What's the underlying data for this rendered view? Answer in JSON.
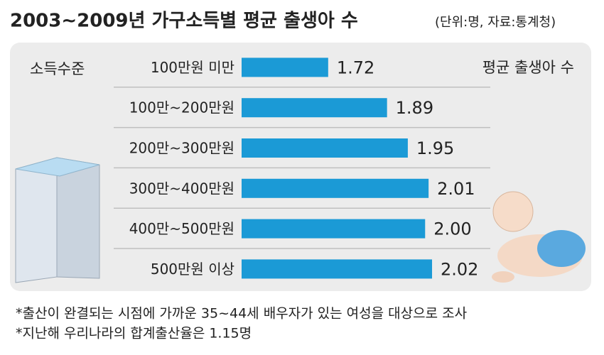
{
  "chart_data": {
    "type": "barh",
    "title": "2003~2009년 가구소득별 평균 출생아 수",
    "subtitle": "(단위:명, 자료:통계청)",
    "category_label": "소득수준",
    "value_label": "평균 출생아 수",
    "categories": [
      "100만원 미만",
      "100만~200만원",
      "200만~300만원",
      "300만~400만원",
      "400만~500만원",
      "500만원 이상"
    ],
    "values": [
      1.72,
      1.89,
      1.95,
      2.01,
      2.0,
      2.02
    ],
    "value_labels": [
      "1.72",
      "1.89",
      "1.95",
      "2.01",
      "2.00",
      "2.02"
    ],
    "color": "#1b9ad6",
    "xlim": [
      1.47,
      2.1
    ],
    "notes": [
      "*출산이 완결되는 시점에 가까운 35~44세 배우자가 있는 여성을 대상으로 조사",
      "*지난해 우리나라의 합계출산율은 1.15명"
    ]
  }
}
